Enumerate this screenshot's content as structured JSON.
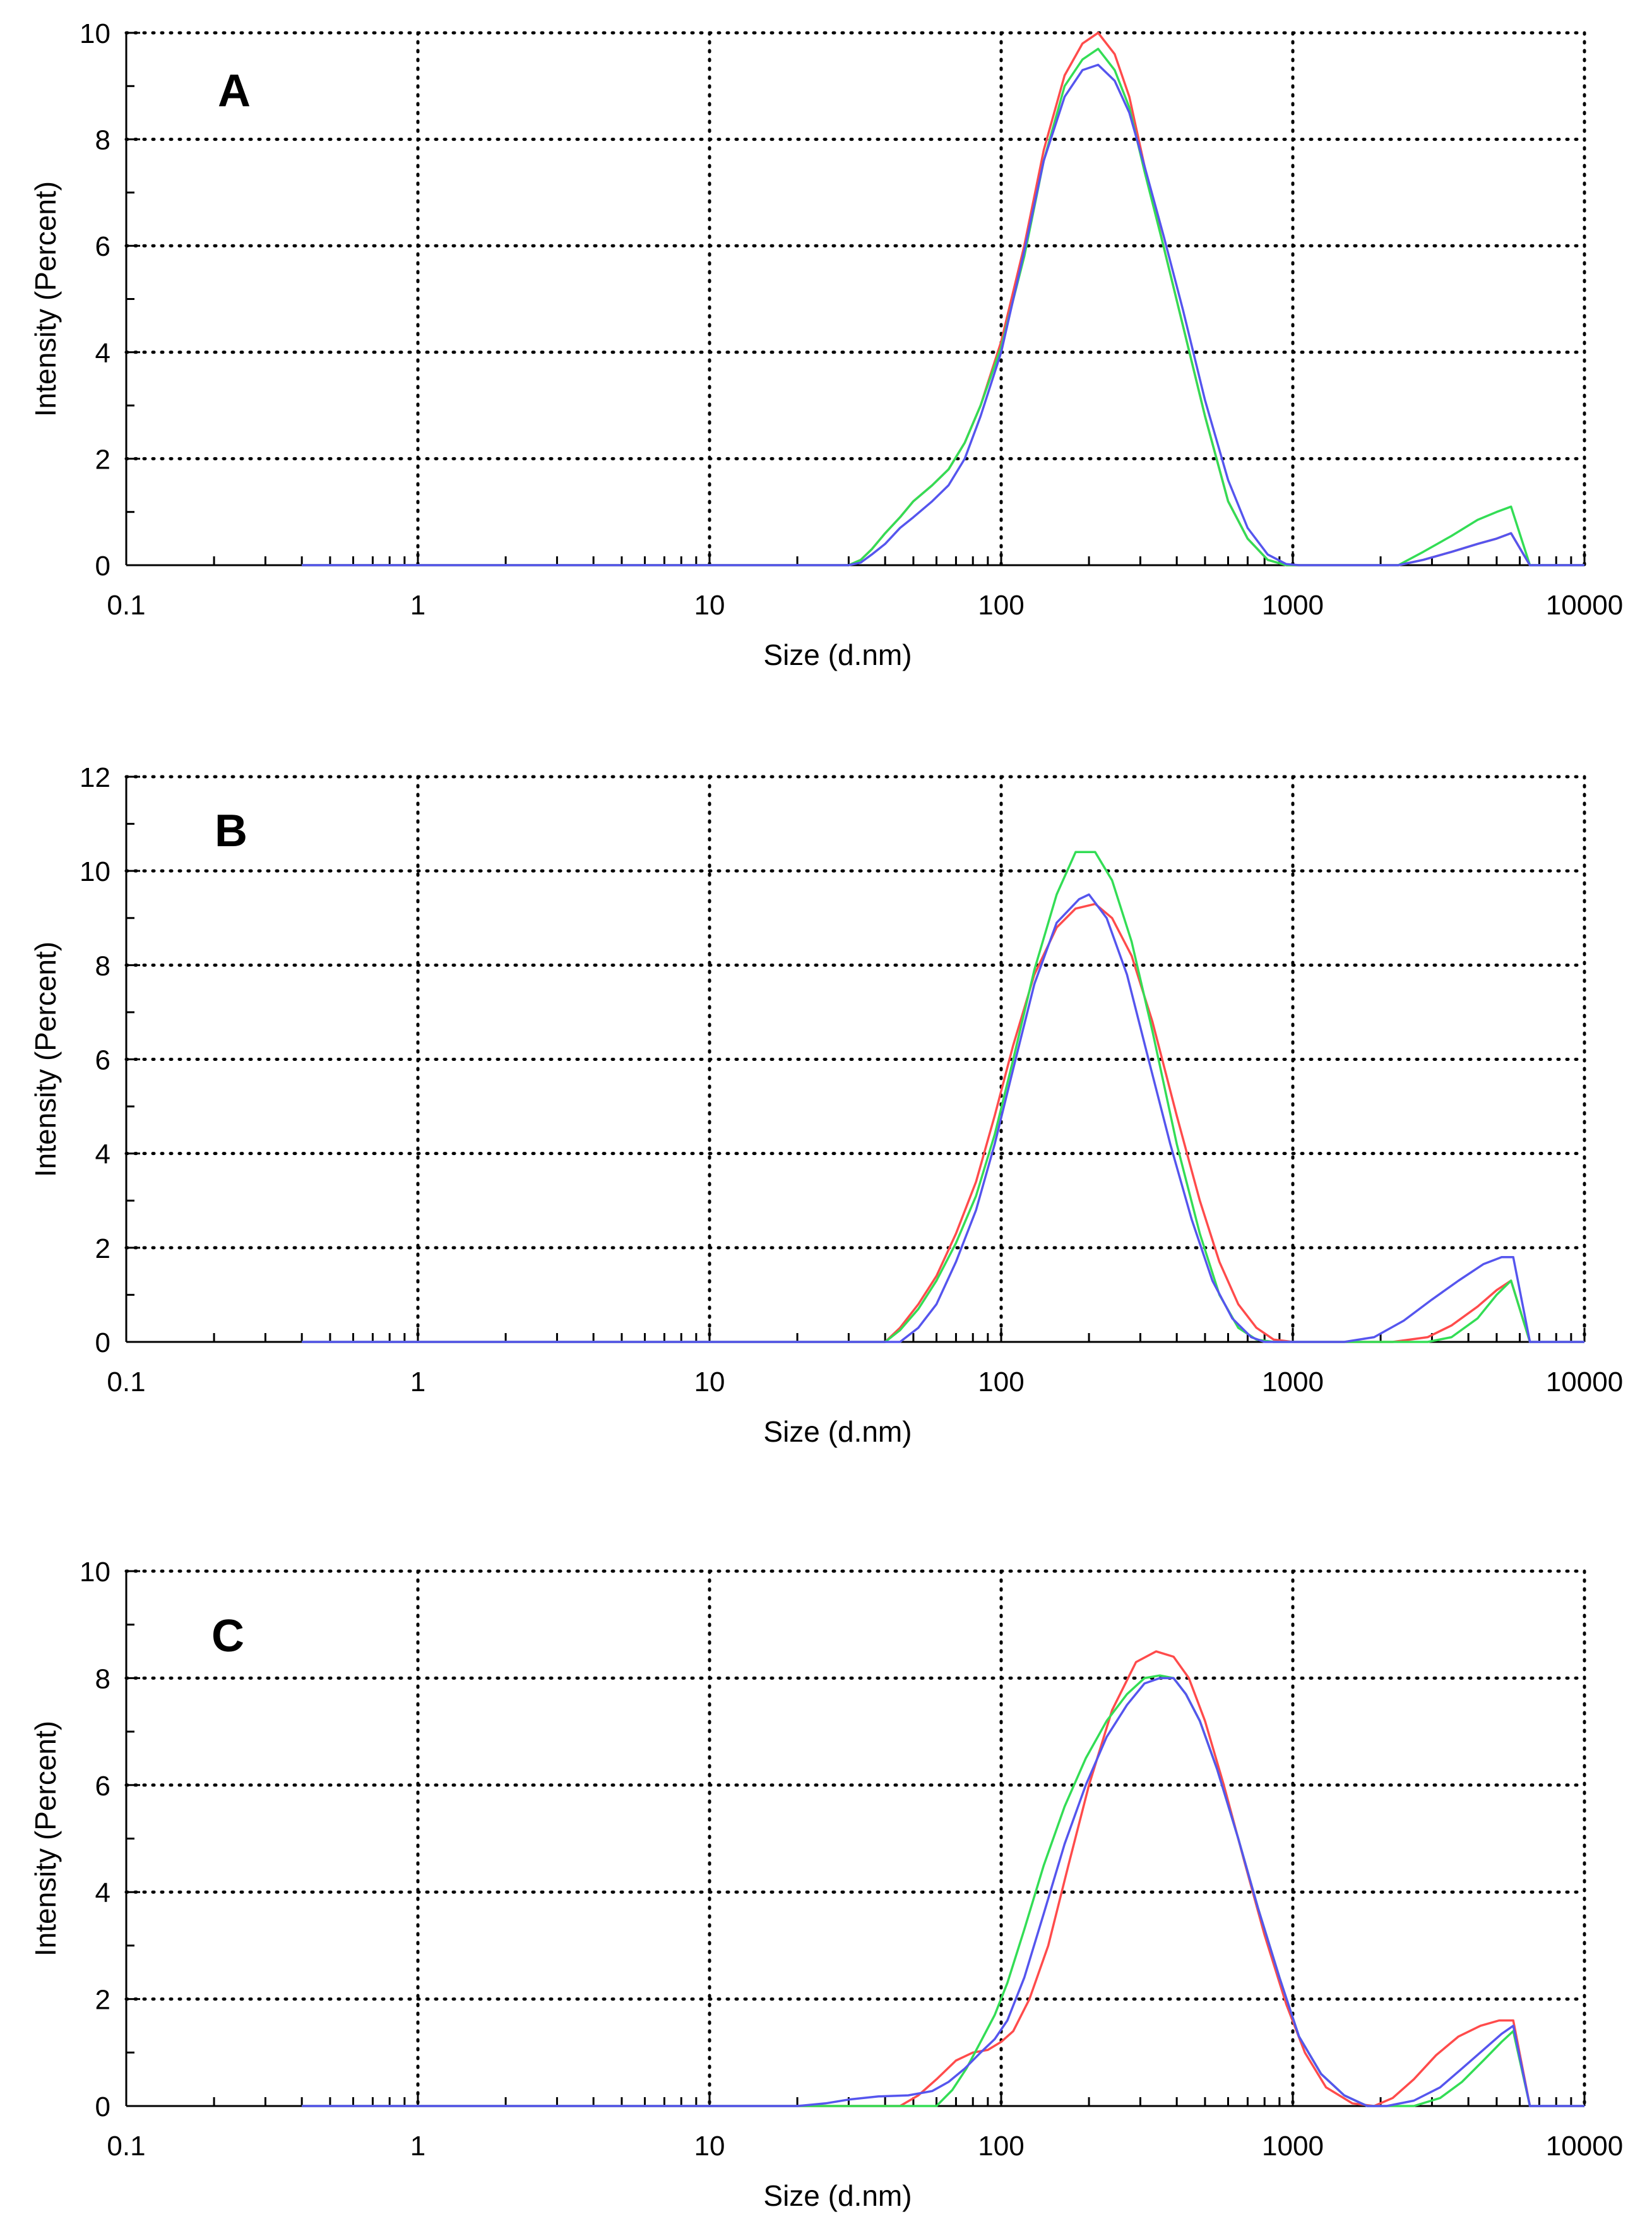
{
  "chart_data": [
    {
      "type": "line",
      "panel_label": "A",
      "xscale": "log",
      "xlim": [
        0.1,
        10000
      ],
      "ylim": [
        0,
        10
      ],
      "xticks": [
        0.1,
        1,
        10,
        100,
        1000,
        10000
      ],
      "xtick_labels": [
        "0.1",
        "1",
        "10",
        "100",
        "1000",
        "10000"
      ],
      "yticks": [
        0,
        2,
        4,
        6,
        8,
        10
      ],
      "ytick_labels": [
        "0",
        "2",
        "4",
        "6",
        "8",
        "10"
      ],
      "xlabel": "Size (d.nm)",
      "ylabel": "Intensity (Percent)",
      "grid": true,
      "series": [
        {
          "name": "red",
          "color": "#ff4b4b",
          "x": [
            0.4,
            30,
            33,
            36,
            40,
            45,
            50,
            58,
            66,
            75,
            85,
            100,
            120,
            140,
            165,
            190,
            215,
            245,
            275,
            310,
            360,
            420,
            500,
            600,
            700,
            820,
            950,
            1050,
            1300,
            1800,
            2300,
            2800,
            3500,
            4300,
            5000,
            5600,
            6500,
            10000
          ],
          "y": [
            0,
            0,
            0.1,
            0.3,
            0.6,
            0.9,
            1.2,
            1.5,
            1.8,
            2.3,
            3.0,
            4.2,
            6.0,
            7.8,
            9.2,
            9.8,
            10.0,
            9.6,
            8.8,
            7.5,
            6.0,
            4.5,
            2.8,
            1.2,
            0.5,
            0.1,
            0,
            0,
            0,
            0,
            0,
            0.1,
            0.25,
            0.4,
            0.5,
            0.6,
            0,
            0
          ]
        },
        {
          "name": "green",
          "color": "#33dd55",
          "x": [
            0.4,
            30,
            33,
            36,
            40,
            45,
            50,
            58,
            66,
            75,
            85,
            100,
            120,
            140,
            165,
            190,
            215,
            245,
            275,
            310,
            360,
            420,
            500,
            600,
            700,
            820,
            950,
            1050,
            1300,
            1800,
            2300,
            2800,
            3500,
            4300,
            5000,
            5600,
            6500,
            10000
          ],
          "y": [
            0,
            0,
            0.1,
            0.3,
            0.6,
            0.9,
            1.2,
            1.5,
            1.8,
            2.3,
            3.0,
            4.1,
            5.8,
            7.6,
            9.0,
            9.5,
            9.7,
            9.3,
            8.6,
            7.4,
            6.0,
            4.5,
            2.8,
            1.2,
            0.5,
            0.1,
            0,
            0,
            0,
            0,
            0,
            0.25,
            0.55,
            0.85,
            1.0,
            1.1,
            0,
            0
          ]
        },
        {
          "name": "blue",
          "color": "#5555ee",
          "x": [
            0.4,
            30,
            33,
            36,
            40,
            45,
            50,
            58,
            66,
            75,
            85,
            100,
            120,
            140,
            165,
            190,
            215,
            245,
            275,
            310,
            360,
            420,
            500,
            600,
            700,
            820,
            950,
            1050,
            1300,
            1800,
            2300,
            2800,
            3500,
            4300,
            5000,
            5600,
            6500,
            10000
          ],
          "y": [
            0,
            0,
            0.05,
            0.2,
            0.4,
            0.7,
            0.9,
            1.2,
            1.5,
            2.0,
            2.8,
            4.0,
            5.9,
            7.6,
            8.8,
            9.3,
            9.4,
            9.1,
            8.5,
            7.5,
            6.2,
            4.8,
            3.1,
            1.6,
            0.7,
            0.2,
            0.02,
            0,
            0,
            0,
            0,
            0.1,
            0.25,
            0.4,
            0.5,
            0.6,
            0,
            0
          ]
        }
      ]
    },
    {
      "type": "line",
      "panel_label": "B",
      "xscale": "log",
      "xlim": [
        0.1,
        10000
      ],
      "ylim": [
        0,
        12
      ],
      "xticks": [
        0.1,
        1,
        10,
        100,
        1000,
        10000
      ],
      "xtick_labels": [
        "0.1",
        "1",
        "10",
        "100",
        "1000",
        "10000"
      ],
      "yticks": [
        0,
        2,
        4,
        6,
        8,
        10,
        12
      ],
      "ytick_labels": [
        "0",
        "2",
        "4",
        "6",
        "8",
        "10",
        "12"
      ],
      "xlabel": "Size (d.nm)",
      "ylabel": "Intensity (Percent)",
      "grid": true,
      "series": [
        {
          "name": "red",
          "color": "#ff4b4b",
          "x": [
            0.4,
            40,
            45,
            52,
            60,
            70,
            82,
            95,
            110,
            130,
            155,
            180,
            210,
            240,
            280,
            330,
            400,
            480,
            560,
            650,
            750,
            860,
            1000,
            1500,
            2200,
            2900,
            3500,
            4300,
            5000,
            5600,
            6500,
            10000
          ],
          "y": [
            0,
            0,
            0.3,
            0.8,
            1.4,
            2.3,
            3.4,
            4.8,
            6.3,
            7.8,
            8.8,
            9.2,
            9.3,
            9.0,
            8.2,
            6.8,
            4.8,
            3.0,
            1.7,
            0.8,
            0.3,
            0.05,
            0,
            0,
            0,
            0.1,
            0.35,
            0.75,
            1.1,
            1.3,
            0,
            0
          ]
        },
        {
          "name": "green",
          "color": "#33dd55",
          "x": [
            0.4,
            40,
            45,
            52,
            60,
            70,
            82,
            95,
            110,
            130,
            155,
            180,
            210,
            240,
            280,
            330,
            400,
            480,
            560,
            650,
            750,
            860,
            1000,
            1500,
            2200,
            2900,
            3500,
            4300,
            5000,
            5600,
            6500,
            10000
          ],
          "y": [
            0,
            0,
            0.25,
            0.7,
            1.3,
            2.1,
            3.1,
            4.4,
            6.0,
            7.9,
            9.5,
            10.4,
            10.4,
            9.8,
            8.5,
            6.6,
            4.2,
            2.3,
            1.0,
            0.3,
            0.05,
            0,
            0,
            0,
            0,
            0,
            0.1,
            0.5,
            1.0,
            1.3,
            0,
            0
          ]
        },
        {
          "name": "blue",
          "color": "#5555ee",
          "x": [
            0.4,
            45,
            52,
            60,
            70,
            82,
            95,
            110,
            130,
            155,
            185,
            200,
            230,
            270,
            320,
            380,
            450,
            530,
            620,
            720,
            800,
            900,
            1500,
            1900,
            2400,
            3000,
            3700,
            4500,
            5200,
            5700,
            6500,
            10000
          ],
          "y": [
            0,
            0,
            0.3,
            0.8,
            1.7,
            2.8,
            4.2,
            5.8,
            7.6,
            8.9,
            9.4,
            9.5,
            9.0,
            7.8,
            6.0,
            4.2,
            2.6,
            1.3,
            0.5,
            0.1,
            0,
            0,
            0,
            0.1,
            0.45,
            0.9,
            1.3,
            1.65,
            1.8,
            1.8,
            0,
            0
          ]
        }
      ]
    },
    {
      "type": "line",
      "panel_label": "C",
      "xscale": "log",
      "xlim": [
        0.1,
        10000
      ],
      "ylim": [
        0,
        10
      ],
      "xticks": [
        0.1,
        1,
        10,
        100,
        1000,
        10000
      ],
      "xtick_labels": [
        "0.1",
        "1",
        "10",
        "100",
        "1000",
        "10000"
      ],
      "yticks": [
        0,
        2,
        4,
        6,
        8,
        10
      ],
      "ytick_labels": [
        "0",
        "2",
        "4",
        "6",
        "8",
        "10"
      ],
      "xlabel": "Size (d.nm)",
      "ylabel": "Intensity (Percent)",
      "grid": true,
      "series": [
        {
          "name": "red",
          "color": "#ff4b4b",
          "x": [
            0.4,
            45,
            52,
            60,
            70,
            80,
            90,
            100,
            110,
            125,
            145,
            170,
            200,
            240,
            290,
            340,
            390,
            440,
            500,
            580,
            680,
            800,
            950,
            1100,
            1300,
            1600,
            1900,
            2200,
            2600,
            3100,
            3700,
            4400,
            5100,
            5700,
            6500,
            10000
          ],
          "y": [
            0,
            0,
            0.2,
            0.5,
            0.85,
            1.0,
            1.05,
            1.2,
            1.4,
            2.0,
            3.0,
            4.5,
            6.0,
            7.4,
            8.3,
            8.5,
            8.4,
            8.0,
            7.2,
            6.0,
            4.6,
            3.2,
            1.9,
            1.0,
            0.35,
            0.05,
            0,
            0.15,
            0.5,
            0.95,
            1.3,
            1.5,
            1.6,
            1.6,
            0,
            0
          ]
        },
        {
          "name": "green",
          "color": "#33dd55",
          "x": [
            0.4,
            60,
            68,
            76,
            85,
            95,
            105,
            120,
            140,
            165,
            195,
            230,
            270,
            310,
            350,
            390,
            430,
            480,
            550,
            650,
            760,
            900,
            1050,
            1250,
            1500,
            1800,
            2100,
            2600,
            3200,
            3800,
            4500,
            5200,
            5700,
            6500,
            10000
          ],
          "y": [
            0,
            0,
            0.3,
            0.7,
            1.2,
            1.7,
            2.3,
            3.3,
            4.5,
            5.6,
            6.5,
            7.2,
            7.7,
            8.0,
            8.05,
            8.0,
            7.7,
            7.2,
            6.3,
            5.0,
            3.7,
            2.4,
            1.3,
            0.6,
            0.2,
            0,
            0,
            0,
            0.15,
            0.45,
            0.85,
            1.2,
            1.4,
            0,
            0
          ]
        },
        {
          "name": "blue",
          "color": "#5555ee",
          "x": [
            0.4,
            20,
            25,
            30,
            38,
            48,
            58,
            66,
            75,
            85,
            95,
            105,
            120,
            140,
            165,
            195,
            230,
            270,
            310,
            350,
            390,
            430,
            480,
            550,
            650,
            760,
            900,
            1050,
            1250,
            1500,
            1800,
            2100,
            2600,
            3200,
            3800,
            4500,
            5200,
            5700,
            6500,
            10000
          ],
          "y": [
            0,
            0,
            0.05,
            0.12,
            0.18,
            0.2,
            0.28,
            0.45,
            0.7,
            1.0,
            1.25,
            1.6,
            2.4,
            3.6,
            4.9,
            6.0,
            6.9,
            7.5,
            7.9,
            8.0,
            8.0,
            7.7,
            7.2,
            6.3,
            5.0,
            3.7,
            2.4,
            1.3,
            0.6,
            0.2,
            0,
            0,
            0.1,
            0.35,
            0.7,
            1.05,
            1.35,
            1.5,
            0,
            0
          ]
        }
      ]
    }
  ]
}
